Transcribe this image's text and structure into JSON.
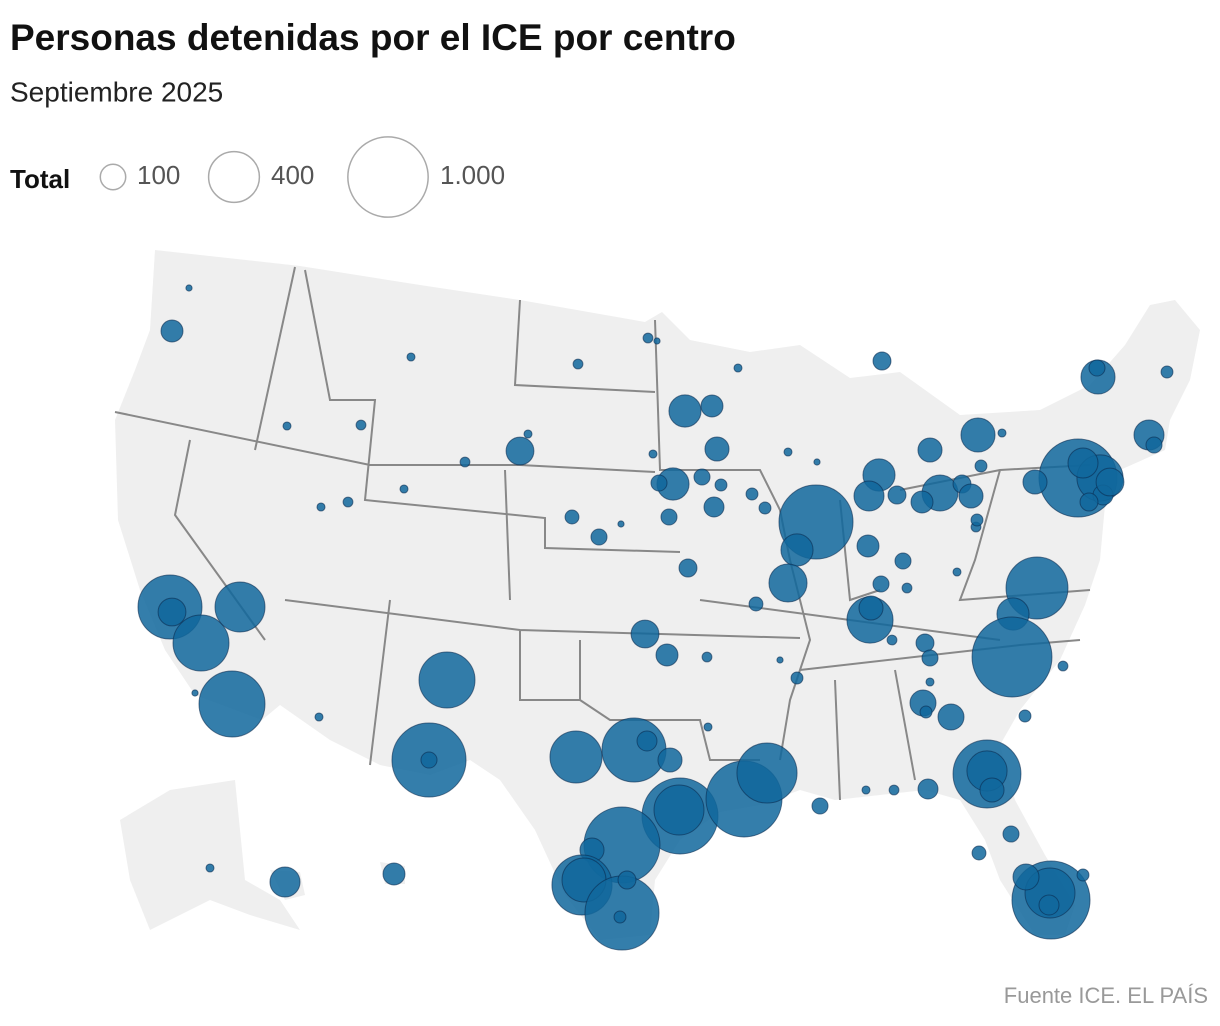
{
  "chart_data": {
    "type": "bubble_map",
    "title": "Personas detenidas por el ICE por centro",
    "subtitle": "Septiembre 2025",
    "source": "Fuente ICE. EL PAÍS",
    "color": "#11679c",
    "stroke_color": "#0a2c50",
    "size_legend": {
      "title": "Total",
      "values": [
        100,
        400,
        {
          "value": 1000,
          "label": "1.000"
        }
      ]
    },
    "values": [
      75,
      6,
      635,
      120,
      486,
      387,
      675,
      6,
      10,
      15,
      10,
      15,
      10,
      15,
      10,
      120,
      10,
      15,
      30,
      40,
      6,
      486,
      850,
      40,
      10,
      120,
      75,
      50,
      420,
      635,
      62,
      90,
      895,
      387,
      895,
      560,
      895,
      90,
      560,
      300,
      850,
      50,
      22,
      40,
      10,
      15,
      15,
      6,
      160,
      75,
      90,
      160,
      40,
      40,
      22,
      62,
      40,
      10,
      10,
      22,
      22,
      10,
      6,
      850,
      160,
      225,
      30,
      50,
      90,
      160,
      140,
      50,
      75,
      40,
      40,
      15,
      330,
      90,
      50,
      40,
      15,
      10,
      105,
      22,
      105,
      180,
      10,
      22,
      200,
      75,
      50,
      90,
      15,
      10,
      595,
      160,
      990,
      15,
      22,
      715,
      250,
      90,
      62,
      15,
      10,
      40,
      30,
      945,
      387,
      62,
      105,
      22,
      945,
      330,
      140,
      90,
      62,
      120,
      50,
      180,
      40,
      140,
      40,
      22,
      22,
      6,
      140,
      75,
      10,
      22
    ]
  }
}
